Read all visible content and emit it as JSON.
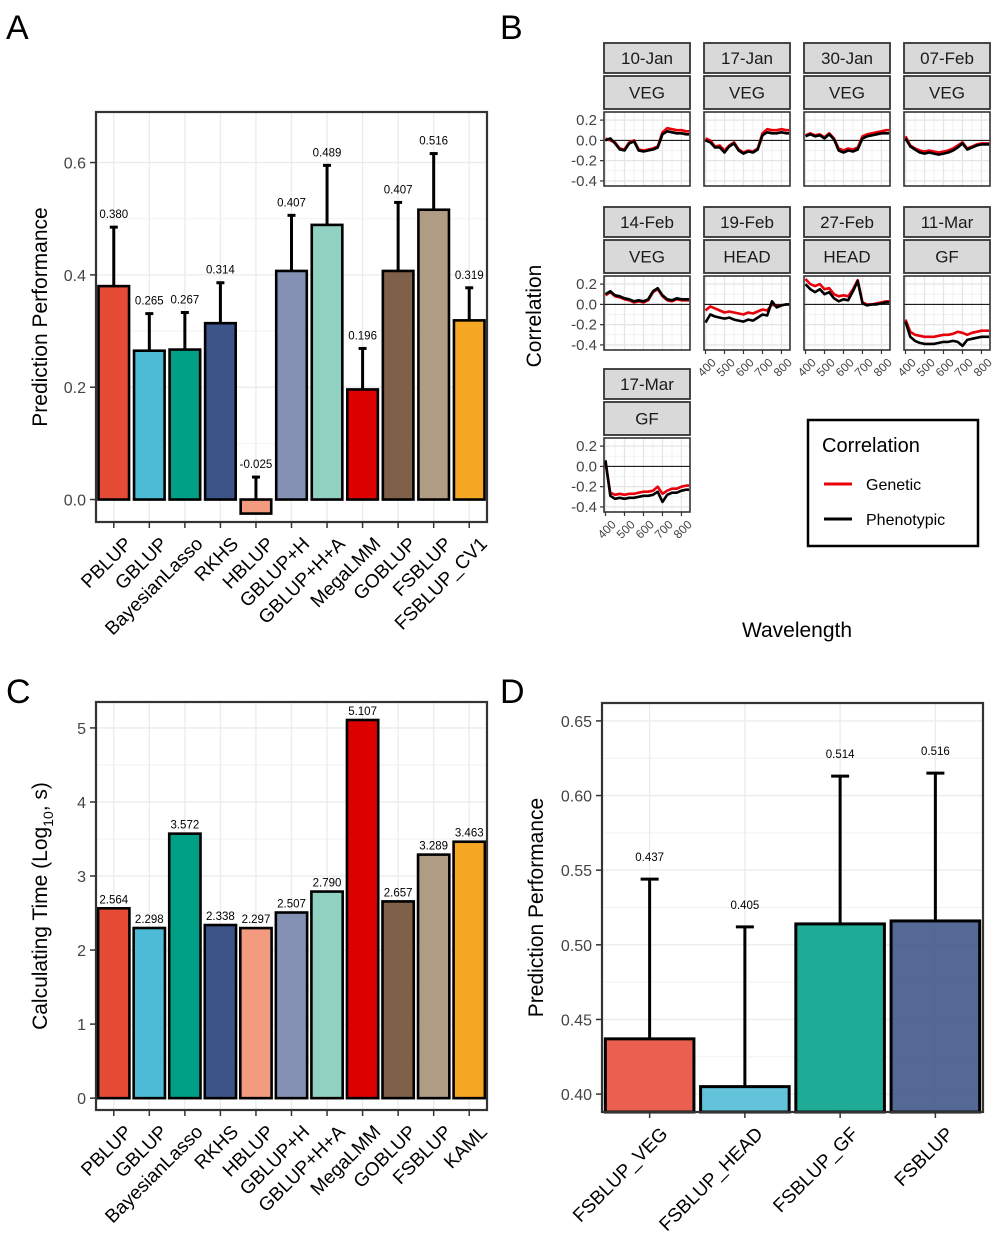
{
  "panels": {
    "a": "A",
    "b": "B",
    "c": "C",
    "d": "D"
  },
  "chart_data": [
    {
      "panel": "A",
      "type": "bar",
      "ylabel": "Prediction Performance",
      "xlabel": "",
      "ylim": [
        -0.04,
        0.69
      ],
      "yticks": [
        0.0,
        0.2,
        0.4,
        0.6
      ],
      "ytick_labels": [
        "0.0",
        "0.2",
        "0.4",
        "0.6"
      ],
      "categories": [
        "PBLUP",
        "GBLUP",
        "BayesianLasso",
        "RKHS",
        "HBLUP",
        "GBLUP+H",
        "GBLUP+H+A",
        "MegaLMM",
        "GOBLUP",
        "FSBLUP",
        "FSBLUP_CV1"
      ],
      "values": [
        0.38,
        0.265,
        0.267,
        0.314,
        -0.025,
        0.407,
        0.489,
        0.196,
        0.407,
        0.516,
        0.319
      ],
      "errors": [
        0.105,
        0.066,
        0.066,
        0.072,
        0.065,
        0.099,
        0.106,
        0.073,
        0.122,
        0.1,
        0.058
      ],
      "labels": [
        "0.380",
        "0.265",
        "0.267",
        "0.314",
        "-0.025",
        "0.407",
        "0.489",
        "0.196",
        "0.407",
        "0.516",
        "0.319"
      ],
      "colors": [
        "#E64B35",
        "#4DBBD5",
        "#00A087",
        "#3C5488",
        "#F39B7F",
        "#8491B4",
        "#91D1C2",
        "#DC0000",
        "#7E6148",
        "#B09C85",
        "#F5A623"
      ]
    },
    {
      "panel": "B",
      "type": "line",
      "ylabel": "Correlation",
      "xlabel": "Wavelength",
      "ylim": [
        -0.45,
        0.28
      ],
      "yticks": [
        0.2,
        0.0,
        -0.2,
        -0.4
      ],
      "ytick_labels": [
        "0.2",
        "0.0",
        "-0.2",
        "-0.4"
      ],
      "xlim": [
        392,
        845
      ],
      "xticks": [
        400,
        500,
        600,
        700,
        800
      ],
      "xtick_labels": [
        "400",
        "500",
        "600",
        "700",
        "800"
      ],
      "x": [
        400,
        425,
        450,
        475,
        500,
        525,
        550,
        575,
        600,
        625,
        650,
        675,
        700,
        725,
        750,
        775,
        800,
        825,
        840
      ],
      "facets": [
        {
          "date": "10-Jan",
          "stage": "VEG",
          "genetic": [
            0.02,
            0.0,
            -0.02,
            -0.08,
            -0.09,
            -0.02,
            0.0,
            -0.09,
            -0.1,
            -0.09,
            -0.08,
            -0.06,
            0.08,
            0.12,
            0.11,
            0.1,
            0.1,
            0.09,
            0.09
          ],
          "phenotypic": [
            0.0,
            0.02,
            -0.03,
            -0.09,
            -0.1,
            -0.03,
            -0.01,
            -0.1,
            -0.11,
            -0.1,
            -0.09,
            -0.07,
            0.06,
            0.09,
            0.08,
            0.07,
            0.07,
            0.06,
            0.06
          ]
        },
        {
          "date": "17-Jan",
          "stage": "VEG",
          "genetic": [
            0.02,
            0.0,
            -0.06,
            -0.05,
            -0.1,
            -0.05,
            -0.02,
            -0.09,
            -0.12,
            -0.1,
            -0.11,
            -0.08,
            0.07,
            0.11,
            0.1,
            0.1,
            0.11,
            0.1,
            0.1
          ],
          "phenotypic": [
            0.0,
            -0.02,
            -0.07,
            -0.07,
            -0.12,
            -0.06,
            -0.03,
            -0.1,
            -0.13,
            -0.11,
            -0.12,
            -0.09,
            0.05,
            0.08,
            0.07,
            0.07,
            0.08,
            0.07,
            0.07
          ]
        },
        {
          "date": "30-Jan",
          "stage": "VEG",
          "genetic": [
            0.05,
            0.07,
            0.05,
            0.06,
            0.03,
            0.07,
            0.02,
            -0.08,
            -0.1,
            -0.08,
            -0.09,
            -0.07,
            0.04,
            0.06,
            0.07,
            0.08,
            0.09,
            0.1,
            0.1
          ],
          "phenotypic": [
            0.04,
            0.06,
            0.04,
            0.05,
            0.02,
            0.06,
            0.01,
            -0.1,
            -0.12,
            -0.1,
            -0.11,
            -0.09,
            0.02,
            0.04,
            0.05,
            0.06,
            0.07,
            0.07,
            0.07
          ]
        },
        {
          "date": "07-Feb",
          "stage": "VEG",
          "genetic": [
            0.04,
            -0.05,
            -0.08,
            -0.1,
            -0.11,
            -0.1,
            -0.11,
            -0.12,
            -0.11,
            -0.1,
            -0.08,
            -0.05,
            -0.02,
            -0.08,
            -0.06,
            -0.04,
            -0.03,
            -0.03,
            -0.03
          ],
          "phenotypic": [
            0.02,
            -0.06,
            -0.09,
            -0.12,
            -0.13,
            -0.12,
            -0.13,
            -0.14,
            -0.13,
            -0.12,
            -0.1,
            -0.07,
            -0.03,
            -0.09,
            -0.07,
            -0.05,
            -0.04,
            -0.04,
            -0.04
          ]
        },
        {
          "date": "14-Feb",
          "stage": "VEG",
          "genetic": [
            0.09,
            0.12,
            0.08,
            0.07,
            0.05,
            0.04,
            0.02,
            0.03,
            0.02,
            0.04,
            0.12,
            0.15,
            0.08,
            0.04,
            0.03,
            0.05,
            0.04,
            0.04,
            0.04
          ],
          "phenotypic": [
            0.1,
            0.13,
            0.09,
            0.08,
            0.06,
            0.05,
            0.03,
            0.04,
            0.03,
            0.05,
            0.13,
            0.16,
            0.09,
            0.05,
            0.04,
            0.06,
            0.05,
            0.05,
            0.05
          ]
        },
        {
          "date": "19-Feb",
          "stage": "HEAD",
          "genetic": [
            -0.06,
            -0.02,
            -0.04,
            -0.06,
            -0.08,
            -0.07,
            -0.08,
            -0.09,
            -0.1,
            -0.08,
            -0.09,
            -0.07,
            -0.05,
            -0.06,
            0.0,
            -0.02,
            -0.01,
            0.0,
            0.0
          ],
          "phenotypic": [
            -0.18,
            -0.1,
            -0.12,
            -0.13,
            -0.14,
            -0.13,
            -0.15,
            -0.16,
            -0.17,
            -0.15,
            -0.16,
            -0.13,
            -0.1,
            -0.11,
            0.03,
            -0.03,
            -0.01,
            0.0,
            0.0
          ]
        },
        {
          "date": "27-Feb",
          "stage": "HEAD",
          "genetic": [
            0.25,
            0.2,
            0.18,
            0.2,
            0.15,
            0.16,
            0.1,
            0.08,
            0.09,
            0.08,
            0.15,
            0.24,
            0.02,
            0.0,
            0.0,
            0.01,
            0.02,
            0.03,
            0.03
          ],
          "phenotypic": [
            0.2,
            0.15,
            0.12,
            0.15,
            0.1,
            0.12,
            0.06,
            0.03,
            0.05,
            0.04,
            0.13,
            0.23,
            0.01,
            -0.01,
            0.0,
            0.0,
            0.01,
            0.02,
            0.02
          ]
        },
        {
          "date": "11-Mar",
          "stage": "GF",
          "genetic": [
            -0.15,
            -0.27,
            -0.3,
            -0.31,
            -0.32,
            -0.32,
            -0.32,
            -0.31,
            -0.3,
            -0.3,
            -0.29,
            -0.27,
            -0.28,
            -0.3,
            -0.28,
            -0.27,
            -0.26,
            -0.26,
            -0.26
          ],
          "phenotypic": [
            -0.17,
            -0.32,
            -0.36,
            -0.38,
            -0.39,
            -0.39,
            -0.39,
            -0.38,
            -0.37,
            -0.37,
            -0.36,
            -0.37,
            -0.41,
            -0.35,
            -0.34,
            -0.33,
            -0.32,
            -0.32,
            -0.32
          ]
        },
        {
          "date": "17-Mar",
          "stage": "GF",
          "genetic": [
            0.04,
            -0.26,
            -0.28,
            -0.27,
            -0.28,
            -0.27,
            -0.27,
            -0.26,
            -0.25,
            -0.25,
            -0.24,
            -0.2,
            -0.27,
            -0.24,
            -0.22,
            -0.22,
            -0.2,
            -0.19,
            -0.19
          ],
          "phenotypic": [
            0.06,
            -0.29,
            -0.32,
            -0.31,
            -0.32,
            -0.31,
            -0.31,
            -0.3,
            -0.29,
            -0.29,
            -0.28,
            -0.25,
            -0.35,
            -0.28,
            -0.26,
            -0.26,
            -0.24,
            -0.23,
            -0.23
          ]
        }
      ],
      "legend": {
        "title": "Correlation",
        "position": "bottom-right",
        "items": [
          {
            "name": "Genetic",
            "color": "#E8000B"
          },
          {
            "name": "Phenotypic",
            "color": "#000000"
          }
        ]
      }
    },
    {
      "panel": "C",
      "type": "bar",
      "ylabel_main": "Calculating Time (Log",
      "ylabel_sub": "10",
      "ylabel_end": ", s)",
      "xlabel": "",
      "ylim": [
        -0.16,
        5.35
      ],
      "yticks": [
        0,
        1,
        2,
        3,
        4,
        5
      ],
      "ytick_labels": [
        "0",
        "1",
        "2",
        "3",
        "4",
        "5"
      ],
      "categories": [
        "PBLUP",
        "GBLUP",
        "BayesianLasso",
        "RKHS",
        "HBLUP",
        "GBLUP+H",
        "GBLUP+H+A",
        "MegaLMM",
        "GOBLUP",
        "FSBLUP",
        "KAML"
      ],
      "values": [
        2.564,
        2.298,
        3.572,
        2.338,
        2.297,
        2.507,
        2.79,
        5.107,
        2.657,
        3.289,
        3.463
      ],
      "labels": [
        "2.564",
        "2.298",
        "3.572",
        "2.338",
        "2.297",
        "2.507",
        "2.790",
        "5.107",
        "2.657",
        "3.289",
        "3.463"
      ],
      "colors": [
        "#E64B35",
        "#4DBBD5",
        "#00A087",
        "#3C5488",
        "#F39B7F",
        "#8491B4",
        "#91D1C2",
        "#DC0000",
        "#7E6148",
        "#B09C85",
        "#F5A623"
      ]
    },
    {
      "panel": "D",
      "type": "bar",
      "ylabel": "Prediction Performance",
      "xlabel": "",
      "ylim": [
        0.388,
        0.662
      ],
      "yticks": [
        0.4,
        0.45,
        0.5,
        0.55,
        0.6,
        0.65
      ],
      "ytick_labels": [
        "0.40",
        "0.45",
        "0.50",
        "0.55",
        "0.60",
        "0.65"
      ],
      "categories": [
        "FSBLUP_VEG",
        "FSBLUP_HEAD",
        "FSBLUP_GF",
        "FSBLUP"
      ],
      "values": [
        0.437,
        0.405,
        0.514,
        0.516
      ],
      "errors": [
        0.107,
        0.107,
        0.099,
        0.099
      ],
      "labels": [
        "0.437",
        "0.405",
        "0.514",
        "0.516"
      ],
      "colors": [
        "#E64B35",
        "#4DBBD5",
        "#00A087",
        "#3C5488"
      ]
    }
  ]
}
